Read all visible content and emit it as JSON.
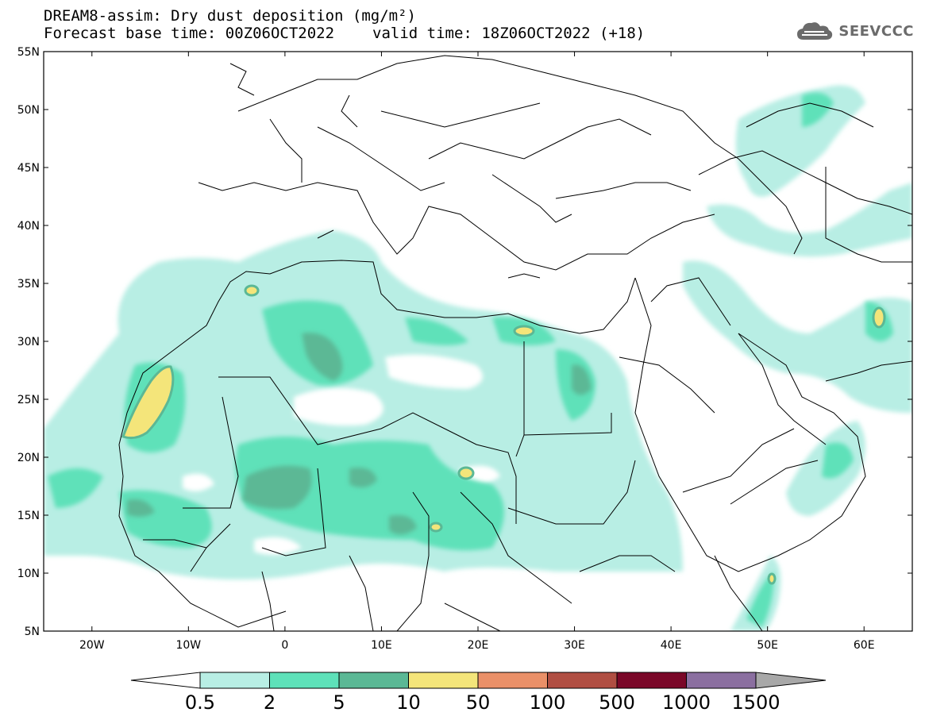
{
  "header": {
    "title_line1": "DREAM8-assim: Dry dust deposition (mg/m²)",
    "base_time": "Forecast base time: 00Z06OCT2022",
    "valid_time": "valid time: 18Z06OCT2022 (+18)",
    "logo_text": "SEEVCCC",
    "logo_icon": "cloud-icon"
  },
  "map": {
    "lat_labels": [
      "55N",
      "50N",
      "45N",
      "40N",
      "35N",
      "30N",
      "25N",
      "20N",
      "15N",
      "10N",
      "5N"
    ],
    "lon_labels": [
      "20W",
      "10W",
      "0",
      "10E",
      "20E",
      "30E",
      "40E",
      "50E",
      "60E"
    ],
    "lon_range": [
      -25,
      65
    ],
    "lat_range": [
      5,
      55
    ]
  },
  "colorbar": {
    "labels": [
      "0.5",
      "2",
      "5",
      "10",
      "50",
      "100",
      "500",
      "1000",
      "1500"
    ],
    "colors": [
      "#b8eee4",
      "#5ee1b9",
      "#5bb895",
      "#f4e57a",
      "#ea9068",
      "#b04e42",
      "#7a0728",
      "#8b6fa0"
    ],
    "under_color": "#ffffff",
    "over_color": "#a8a8a8"
  }
}
